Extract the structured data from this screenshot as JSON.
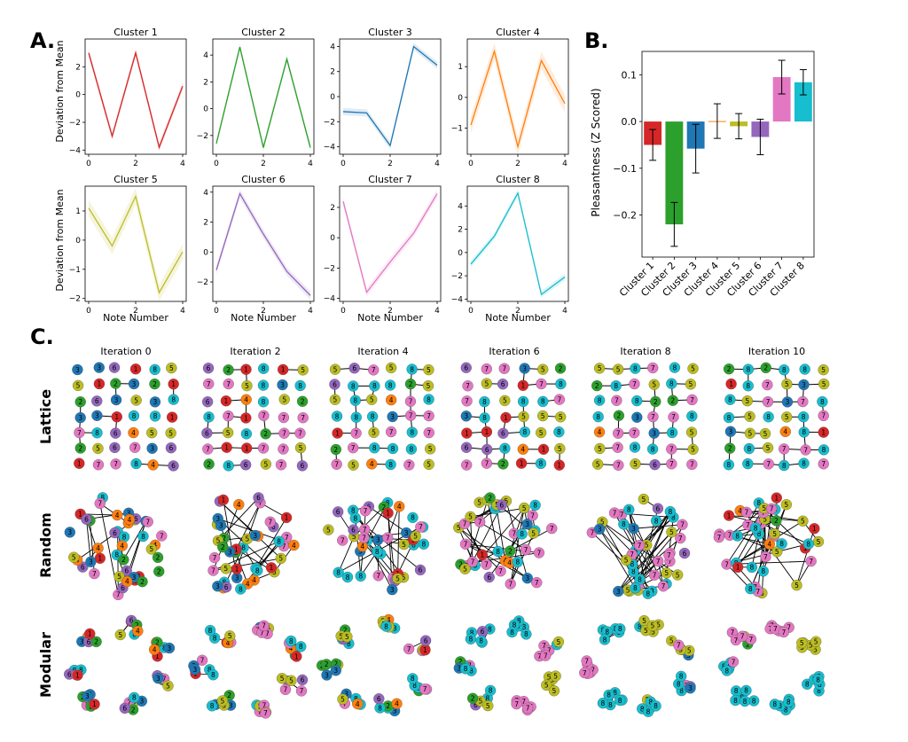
{
  "panels": {
    "a": "A.",
    "b": "B.",
    "c": "C."
  },
  "panel_a": {
    "ylabel": "Deviation from Mean",
    "xlabel": "Note Number"
  },
  "panel_c": {
    "iterations": [
      "Iteration 0",
      "Iteration 2",
      "Iteration 4",
      "Iteration 6",
      "Iteration 8",
      "Iteration 10"
    ],
    "rows": [
      "Lattice",
      "Random",
      "Modular"
    ]
  },
  "cluster_colors": {
    "1": "#d62728",
    "2": "#2ca02c",
    "3": "#1f77b4",
    "4": "#ff7f0e",
    "5": "#bcbd22",
    "6": "#9467bd",
    "7": "#e377c2",
    "8": "#17becf"
  },
  "chart_data": [
    {
      "type": "line",
      "title": "Cluster 1",
      "x": [
        0,
        1,
        2,
        3,
        4
      ],
      "values": [
        3.0,
        -3.0,
        3.0,
        -3.8,
        0.6
      ],
      "ylim": [
        -4.3,
        4.0
      ],
      "yticks": [
        -4,
        -2,
        0,
        2
      ],
      "xticks": [
        0,
        2,
        4
      ],
      "color": "#d62728"
    },
    {
      "type": "line",
      "title": "Cluster 2",
      "x": [
        0,
        1,
        2,
        3,
        4
      ],
      "values": [
        -2.6,
        4.6,
        -2.9,
        3.7,
        -2.9
      ],
      "ylim": [
        -3.4,
        5.2
      ],
      "yticks": [
        -2,
        0,
        2,
        4
      ],
      "xticks": [
        0,
        2,
        4
      ],
      "color": "#2ca02c"
    },
    {
      "type": "line",
      "title": "Cluster 3",
      "x": [
        0,
        1,
        2,
        3,
        4
      ],
      "values": [
        -1.2,
        -1.3,
        -3.9,
        4.0,
        2.5
      ],
      "ylim": [
        -4.6,
        4.6
      ],
      "yticks": [
        -4,
        -2,
        0,
        2,
        4
      ],
      "xticks": [
        0,
        2,
        4
      ],
      "color": "#1f77b4"
    },
    {
      "type": "line",
      "title": "Cluster 4",
      "x": [
        0,
        1,
        2,
        3,
        4
      ],
      "values": [
        -0.9,
        1.5,
        -1.6,
        1.2,
        -0.2
      ],
      "ylim": [
        -1.85,
        1.9
      ],
      "yticks": [
        -1,
        0,
        1
      ],
      "xticks": [
        0,
        2,
        4
      ],
      "color": "#ff7f0e"
    },
    {
      "type": "line",
      "title": "Cluster 5",
      "x": [
        0,
        1,
        2,
        3,
        4
      ],
      "values": [
        1.1,
        -0.2,
        1.5,
        -1.8,
        -0.4
      ],
      "ylim": [
        -2.1,
        1.85
      ],
      "yticks": [
        -2,
        -1,
        0,
        1
      ],
      "xticks": [
        0,
        2,
        4
      ],
      "color": "#bcbd22"
    },
    {
      "type": "line",
      "title": "Cluster 6",
      "x": [
        0,
        1,
        2,
        3,
        4
      ],
      "values": [
        -1.2,
        3.9,
        1.2,
        -1.3,
        -2.9
      ],
      "ylim": [
        -3.3,
        4.4
      ],
      "yticks": [
        -2,
        0,
        2,
        4
      ],
      "xticks": [
        0,
        2,
        4
      ],
      "color": "#9467bd"
    },
    {
      "type": "line",
      "title": "Cluster 7",
      "x": [
        0,
        1,
        2,
        3,
        4
      ],
      "values": [
        2.4,
        -3.6,
        -1.6,
        0.3,
        2.9
      ],
      "ylim": [
        -4.2,
        3.4
      ],
      "yticks": [
        -4,
        -2,
        0,
        2
      ],
      "xticks": [
        0,
        2,
        4
      ],
      "color": "#e377c2"
    },
    {
      "type": "line",
      "title": "Cluster 8",
      "x": [
        0,
        1,
        2,
        3,
        4
      ],
      "values": [
        -1.0,
        1.4,
        5.1,
        -3.6,
        -2.1
      ],
      "ylim": [
        -4.2,
        5.7
      ],
      "yticks": [
        -4,
        -2,
        0,
        2,
        4
      ],
      "xticks": [
        0,
        2,
        4
      ],
      "color": "#17becf"
    },
    {
      "type": "bar",
      "ylabel": "Pleasantness (Z Scored)",
      "categories": [
        "Cluster 1",
        "Cluster 2",
        "Cluster 3",
        "Cluster 4",
        "Cluster 5",
        "Cluster 6",
        "Cluster 7",
        "Cluster 8"
      ],
      "values": [
        -0.05,
        -0.22,
        -0.058,
        0.001,
        -0.01,
        -0.033,
        0.095,
        0.084
      ],
      "errors": [
        0.033,
        0.047,
        0.052,
        0.037,
        0.027,
        0.038,
        0.036,
        0.027
      ],
      "ylim": [
        -0.29,
        0.15
      ],
      "yticks": [
        -0.2,
        -0.1,
        0.0,
        0.1
      ],
      "ytick_labels": [
        "−0.2",
        "−0.1",
        "0.0",
        "0.1"
      ],
      "colors": [
        "#d62728",
        "#2ca02c",
        "#1f77b4",
        "#ff7f0e",
        "#bcbd22",
        "#9467bd",
        "#e377c2",
        "#17becf"
      ]
    }
  ]
}
